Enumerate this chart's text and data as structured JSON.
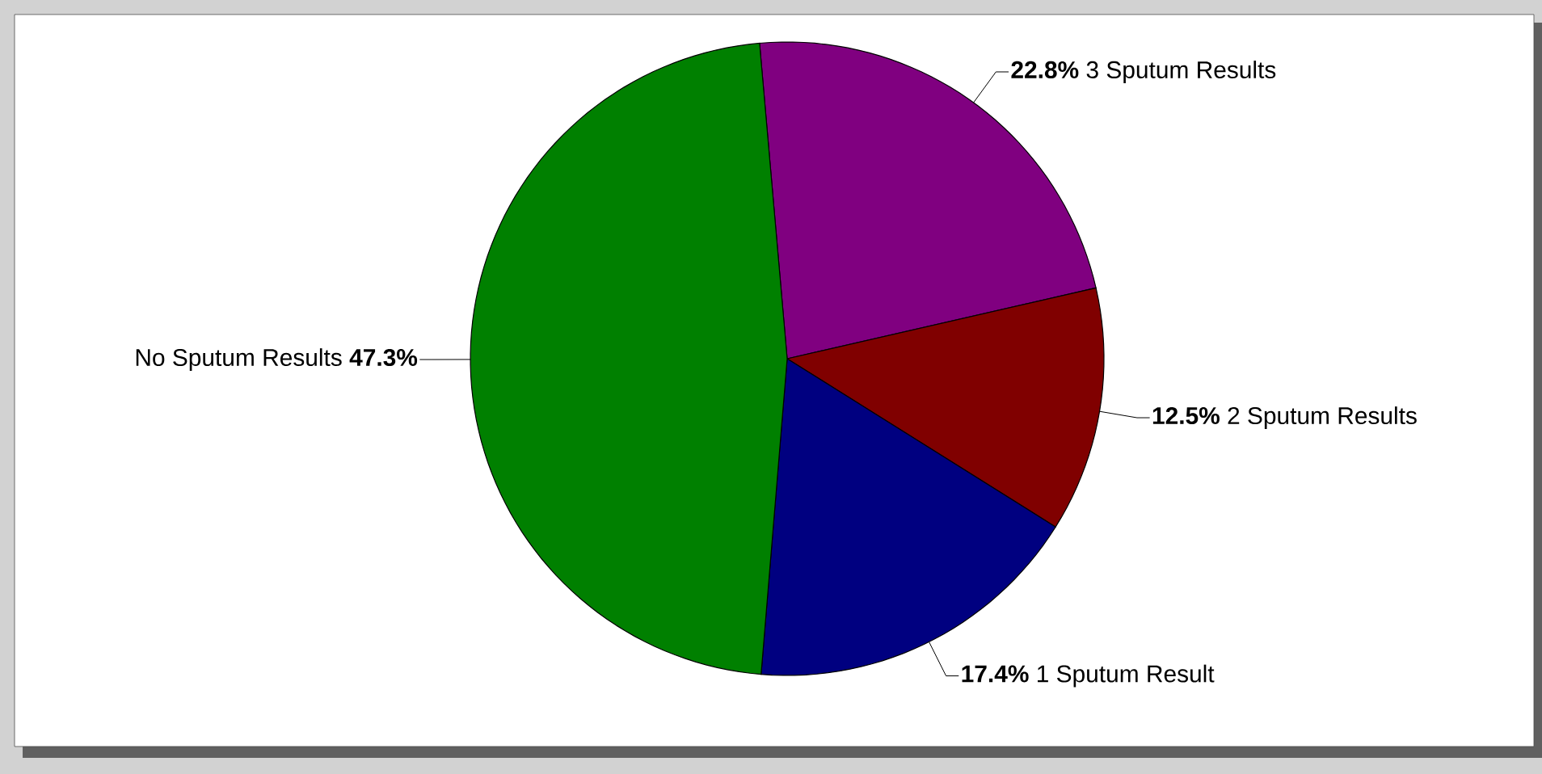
{
  "chart_data": {
    "type": "pie",
    "categories": [
      "3 Sputum Results",
      "2 Sputum Results",
      "1 Sputum Result",
      "No Sputum Results"
    ],
    "values": [
      22.8,
      12.5,
      17.4,
      47.3
    ],
    "value_labels": [
      "22.8%",
      "12.5%",
      "17.4%",
      "47.3%"
    ],
    "colors": [
      "#800080",
      "#800000",
      "#000080",
      "#008000"
    ]
  }
}
